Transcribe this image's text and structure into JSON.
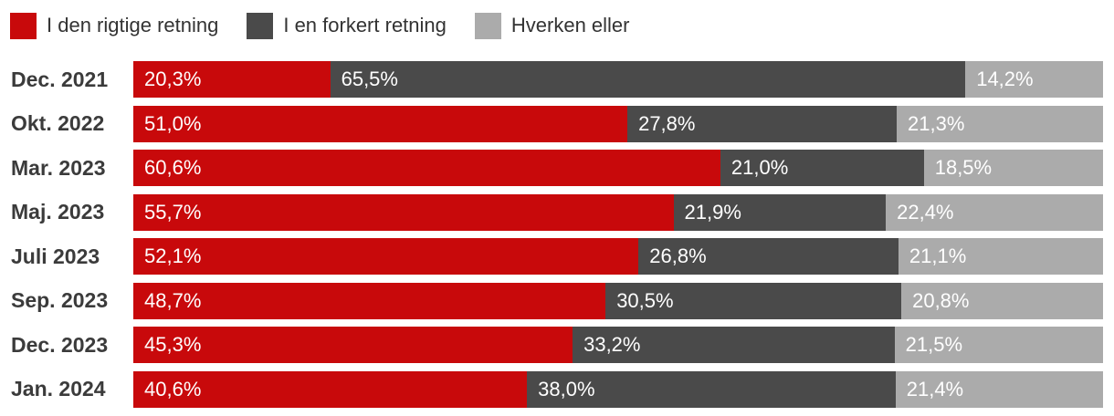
{
  "colors": {
    "positive_red": "#C8090B",
    "negative_dark_gray": "#4A4A4A",
    "neutral_light_gray": "#ABABAB",
    "category_label_text": "#3B3B3B",
    "legend_text": "#333333",
    "value_text": "#FFFFFF",
    "background": "#FFFFFF"
  },
  "legend": {
    "items": [
      {
        "label": "I den rigtige retning",
        "color": "#C8090B"
      },
      {
        "label": "I en forkert retning",
        "color": "#4A4A4A"
      },
      {
        "label": "Hverken eller",
        "color": "#ABABAB"
      }
    ]
  },
  "chart_data": {
    "type": "bar",
    "orientation": "horizontal",
    "stacked": true,
    "grid": false,
    "legend_position": "top",
    "title": "",
    "xlabel": "",
    "ylabel": "",
    "xlim": [
      0,
      100
    ],
    "categories": [
      "Dec. 2021",
      "Okt. 2022",
      "Mar. 2023",
      "Maj. 2023",
      "Juli 2023",
      "Sep. 2023",
      "Dec. 2023",
      "Jan. 2024"
    ],
    "series": [
      {
        "name": "I den rigtige retning",
        "color": "#C8090B",
        "values": [
          20.3,
          51.0,
          60.6,
          55.7,
          52.1,
          48.7,
          45.3,
          40.6
        ],
        "value_labels": [
          "20,3%",
          "51,0%",
          "60,6%",
          "55,7%",
          "52,1%",
          "48,7%",
          "45,3%",
          "40,6%"
        ]
      },
      {
        "name": "I en forkert retning",
        "color": "#4A4A4A",
        "values": [
          65.5,
          27.8,
          21.0,
          21.9,
          26.8,
          30.5,
          33.2,
          38.0
        ],
        "value_labels": [
          "65,5%",
          "27,8%",
          "21,0%",
          "21,9%",
          "26,8%",
          "30,5%",
          "33,2%",
          "38,0%"
        ]
      },
      {
        "name": "Hverken eller",
        "color": "#ABABAB",
        "values": [
          14.2,
          21.3,
          18.5,
          22.4,
          21.1,
          20.8,
          21.5,
          21.4
        ],
        "value_labels": [
          "14,2%",
          "21,3%",
          "18,5%",
          "22,4%",
          "21,1%",
          "20,8%",
          "21,5%",
          "21,4%"
        ]
      }
    ]
  }
}
